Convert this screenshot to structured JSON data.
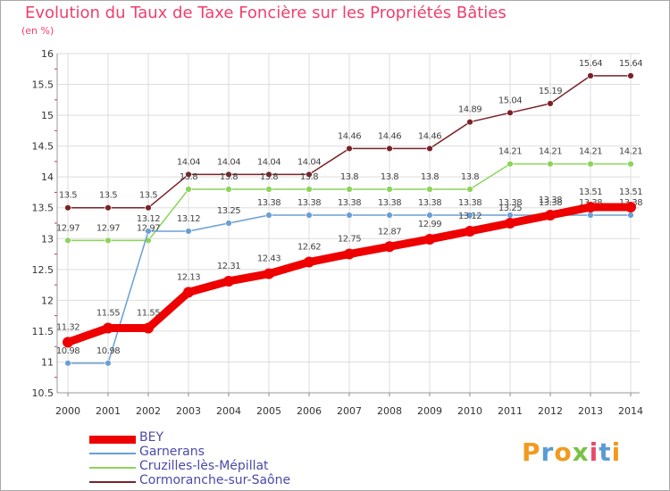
{
  "title": "Evolution du Taux de Taxe Foncière sur les Propriétés Bâties",
  "unit": "(en %)",
  "logo": "Proxiti",
  "chart_data": {
    "type": "line",
    "title": "Evolution du Taux de Taxe Foncière sur les Propriétés Bâties",
    "ylabel": "(en %)",
    "xlabel": "",
    "ylim": [
      10.5,
      16
    ],
    "yticks": [
      10.5,
      11,
      11.5,
      12,
      12.5,
      13,
      13.5,
      14,
      14.5,
      15,
      15.5,
      16
    ],
    "ytick_labels": [
      "10.5",
      "11",
      "11.5",
      "12",
      "12.5",
      "13",
      "13.5",
      "14",
      "14.5",
      "15",
      "15.5",
      "16"
    ],
    "x": [
      "2000",
      "2001",
      "2002",
      "2003",
      "2004",
      "2005",
      "2006",
      "2007",
      "2008",
      "2009",
      "2010",
      "2011",
      "2012",
      "2013",
      "2014"
    ],
    "grid": true,
    "legend_position": "bottom-left",
    "series": [
      {
        "name": "Cormoranche-sur-Saône",
        "color": "#7b2228",
        "values": [
          13.5,
          13.5,
          13.5,
          14.04,
          14.04,
          14.04,
          14.04,
          14.46,
          14.46,
          14.46,
          14.89,
          15.04,
          15.19,
          15.64,
          15.64
        ],
        "labels": [
          "13.5",
          "13.5",
          "13.5",
          "14.04",
          "14.04",
          "14.04",
          "14.04",
          "14.46",
          "14.46",
          "14.46",
          "14.89",
          "15.04",
          "15.19",
          "15.64",
          "15.64"
        ]
      },
      {
        "name": "Cruzilles-lès-Mépillat",
        "color": "#8cd45a",
        "values": [
          12.97,
          12.97,
          12.97,
          13.8,
          13.8,
          13.8,
          13.8,
          13.8,
          13.8,
          13.8,
          13.8,
          14.21,
          14.21,
          14.21,
          14.21
        ],
        "labels": [
          "12.97",
          "12.97",
          "12.97",
          "13.8",
          "13.8",
          "13.8",
          "13.8",
          "13.8",
          "13.8",
          "13.8",
          "13.8",
          "14.21",
          "14.21",
          "14.21",
          "14.21"
        ]
      },
      {
        "name": "Garnerans",
        "color": "#6a9fd4",
        "values": [
          10.98,
          10.98,
          13.12,
          13.12,
          13.25,
          13.38,
          13.38,
          13.38,
          13.38,
          13.38,
          13.38,
          13.38,
          13.38,
          13.38,
          13.38
        ],
        "labels": [
          "10.98",
          "10.98",
          "13.12",
          "13.12",
          "13.25",
          "13.38",
          "13.38",
          "13.38",
          "13.38",
          "13.38",
          "13.38",
          "13.38",
          "13.38",
          "13.38",
          "13.38"
        ]
      },
      {
        "name": "BEY",
        "color": "#ee0000",
        "values": [
          11.32,
          11.55,
          11.55,
          12.13,
          12.31,
          12.43,
          12.62,
          12.75,
          12.87,
          12.99,
          13.12,
          13.25,
          13.38,
          13.51,
          13.51
        ],
        "labels": [
          "11.32",
          "11.55",
          "11.55",
          "12.13",
          "12.31",
          "12.43",
          "12.62",
          "12.75",
          "12.87",
          "12.99",
          "13.12",
          "13.25",
          "13.38",
          "13.51",
          "13.51"
        ]
      }
    ],
    "legend": [
      "BEY",
      "Garnerans",
      "Cruzilles-lès-Mépillat",
      "Cormoranche-sur-Saône"
    ]
  }
}
